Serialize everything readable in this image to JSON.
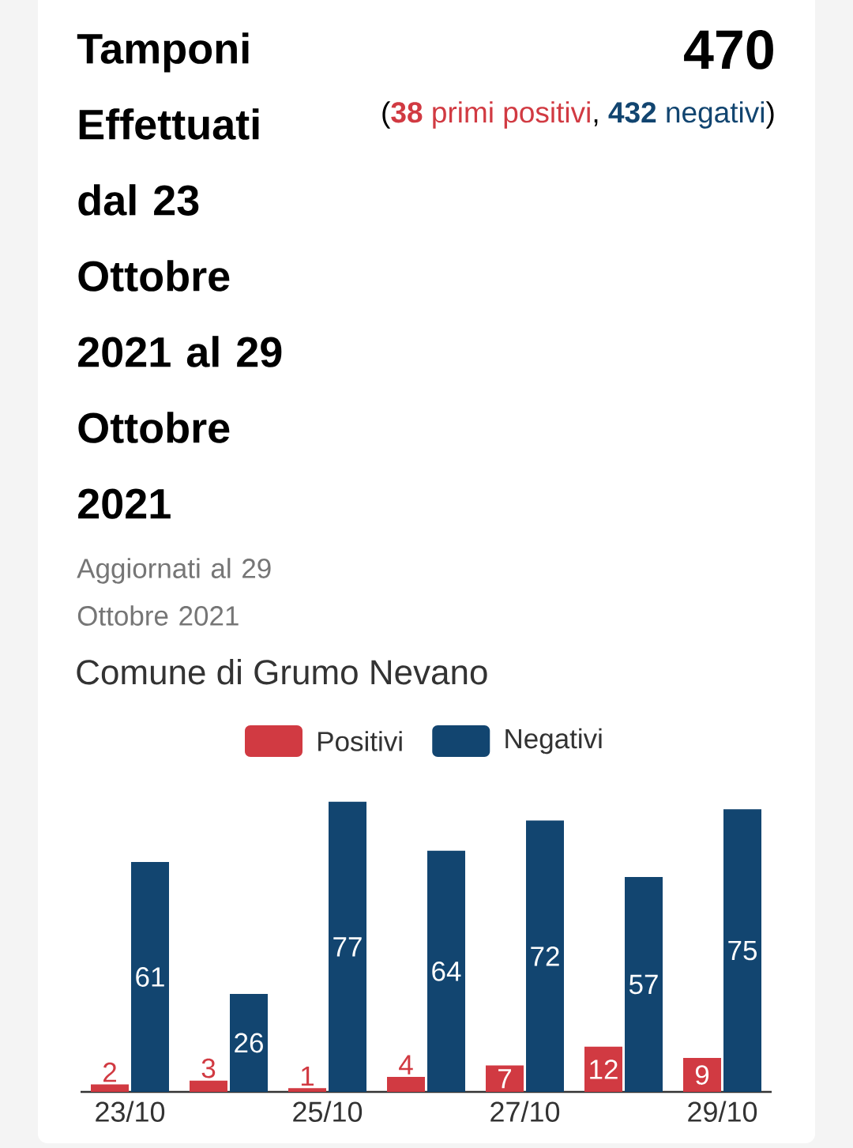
{
  "chart_data": {
    "type": "bar",
    "title": "Tamponi Effettuati dal 23 Ottobre 2021 al 29 Ottobre 2021",
    "subtitle": "Aggiornati al 29 Ottobre 2021",
    "annotations": [
      "470",
      "(",
      "**38** primi positivi",
      ",",
      "**432** negativi",
      ")",
      "Comune di Grumo Nevano"
    ],
    "categories": [
      "23/10",
      null,
      "25/10",
      null,
      "27/10",
      null,
      "29/10"
    ],
    "series": [
      {
        "name": "Positivi",
        "color": "#d13a42",
        "values": [
          2,
          3,
          1,
          4,
          7,
          12,
          9
        ]
      },
      {
        "name": "Negativi",
        "color": "#124570",
        "values": [
          61,
          26,
          77,
          64,
          72,
          57,
          75
        ]
      }
    ],
    "data_labels": true,
    "legend": "top",
    "tick_labels": "x"
  }
}
